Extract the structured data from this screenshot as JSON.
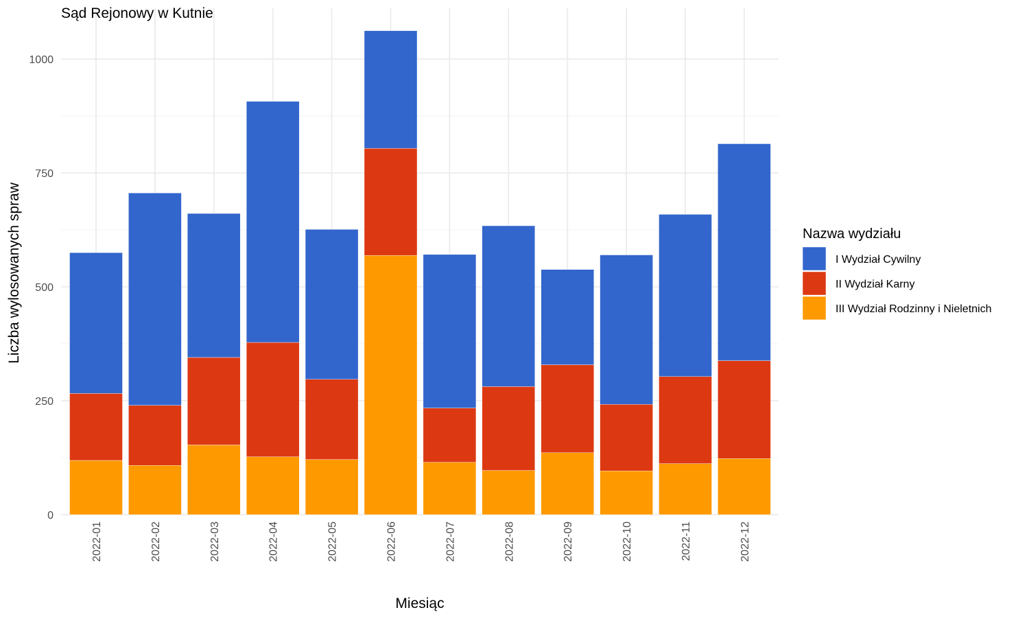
{
  "chart_data": {
    "type": "bar",
    "stacked": true,
    "title": "Sąd Rejonowy w Kutnie",
    "xlabel": "Miesiąc",
    "ylabel": "Liczba wylosowanych spraw",
    "categories": [
      "2022-01",
      "2022-02",
      "2022-03",
      "2022-04",
      "2022-05",
      "2022-06",
      "2022-07",
      "2022-08",
      "2022-09",
      "2022-10",
      "2022-11",
      "2022-12"
    ],
    "ylim": [
      0,
      1100
    ],
    "yticks": [
      0,
      250,
      500,
      750,
      1000
    ],
    "grid": true,
    "legend": {
      "title": "Nazwa wydziału",
      "position": "right"
    },
    "series": [
      {
        "name": "III Wydział Rodzinny i Nieletnich",
        "color": "#FF9900",
        "values": [
          119,
          108,
          153,
          127,
          121,
          569,
          115,
          97,
          136,
          96,
          112,
          123
        ]
      },
      {
        "name": "II Wydział Karny",
        "color": "#DC3912",
        "values": [
          147,
          132,
          192,
          251,
          176,
          235,
          119,
          184,
          193,
          146,
          191,
          215
        ]
      },
      {
        "name": "I Wydział Cywilny",
        "color": "#3366CC",
        "values": [
          309,
          466,
          316,
          529,
          329,
          258,
          337,
          353,
          209,
          328,
          356,
          476
        ]
      }
    ],
    "legend_order": [
      "I Wydział Cywilny",
      "II Wydział Karny",
      "III Wydział Rodzinny i Nieletnich"
    ]
  }
}
